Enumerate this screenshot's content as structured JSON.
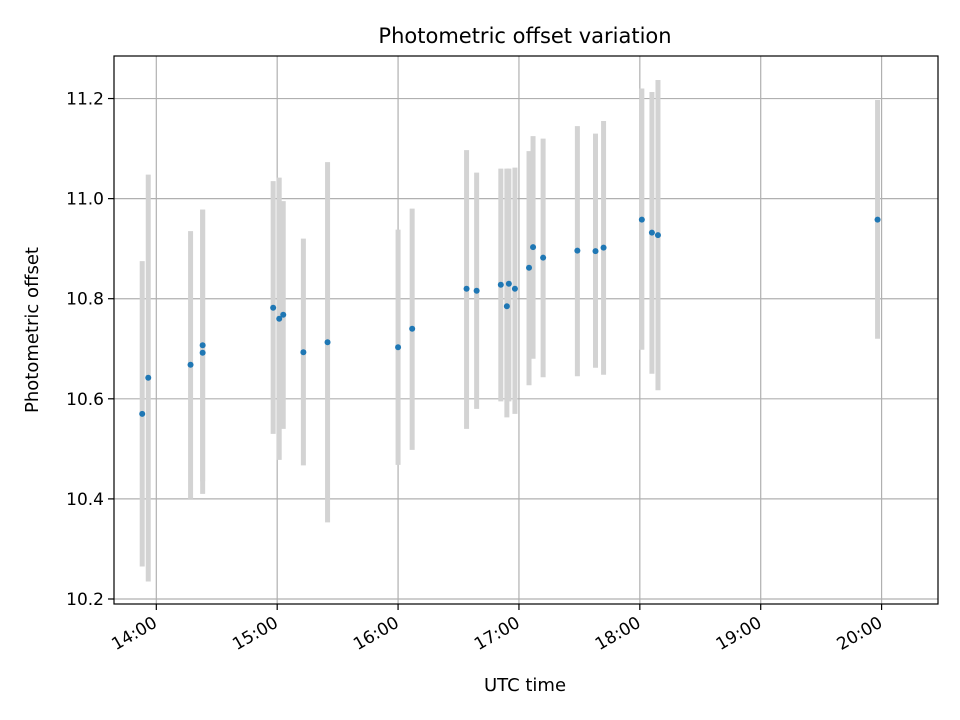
{
  "chart_data": {
    "type": "scatter",
    "title": "Photometric offset variation",
    "xlabel": "UTC time",
    "ylabel": "Photometric offset",
    "x_ticks": [
      "14:00",
      "15:00",
      "16:00",
      "17:00",
      "18:00",
      "19:00",
      "20:00"
    ],
    "xlim": [
      "13:39",
      "20:28"
    ],
    "ylim": [
      10.19,
      11.285
    ],
    "y_ticks": [
      10.2,
      10.4,
      10.6,
      10.8,
      11.0,
      11.2
    ],
    "grid": true,
    "colors": {
      "point": "#1f77b4",
      "errorbar": "#d3d3d3",
      "grid": "#b0b0b0"
    },
    "points": [
      {
        "x": "13:53",
        "y": 10.57,
        "lo": 10.265,
        "hi": 10.875
      },
      {
        "x": "13:56",
        "y": 10.642,
        "lo": 10.235,
        "hi": 11.048
      },
      {
        "x": "14:17",
        "y": 10.668,
        "lo": 10.4,
        "hi": 10.935
      },
      {
        "x": "14:23",
        "y": 10.692,
        "lo": 10.41,
        "hi": 10.978
      },
      {
        "x": "14:23",
        "y": 10.707,
        "lo": 10.435,
        "hi": 10.978
      },
      {
        "x": "14:58",
        "y": 10.782,
        "lo": 10.53,
        "hi": 11.035
      },
      {
        "x": "15:01",
        "y": 10.76,
        "lo": 10.478,
        "hi": 11.042
      },
      {
        "x": "15:03",
        "y": 10.768,
        "lo": 10.54,
        "hi": 10.995
      },
      {
        "x": "15:13",
        "y": 10.693,
        "lo": 10.467,
        "hi": 10.92
      },
      {
        "x": "15:25",
        "y": 10.713,
        "lo": 10.353,
        "hi": 11.073
      },
      {
        "x": "16:00",
        "y": 10.703,
        "lo": 10.468,
        "hi": 10.938
      },
      {
        "x": "16:07",
        "y": 10.74,
        "lo": 10.498,
        "hi": 10.98
      },
      {
        "x": "16:34",
        "y": 10.82,
        "lo": 10.54,
        "hi": 11.097
      },
      {
        "x": "16:39",
        "y": 10.816,
        "lo": 10.58,
        "hi": 11.052
      },
      {
        "x": "16:51",
        "y": 10.828,
        "lo": 10.595,
        "hi": 11.06
      },
      {
        "x": "16:54",
        "y": 10.785,
        "lo": 10.563,
        "hi": 11.06
      },
      {
        "x": "16:55",
        "y": 10.83,
        "lo": 10.595,
        "hi": 11.06
      },
      {
        "x": "16:58",
        "y": 10.82,
        "lo": 10.57,
        "hi": 11.062
      },
      {
        "x": "17:05",
        "y": 10.862,
        "lo": 10.627,
        "hi": 11.095
      },
      {
        "x": "17:07",
        "y": 10.903,
        "lo": 10.68,
        "hi": 11.125
      },
      {
        "x": "17:12",
        "y": 10.882,
        "lo": 10.643,
        "hi": 11.12
      },
      {
        "x": "17:29",
        "y": 10.896,
        "lo": 10.645,
        "hi": 11.145
      },
      {
        "x": "17:38",
        "y": 10.895,
        "lo": 10.662,
        "hi": 11.13
      },
      {
        "x": "17:42",
        "y": 10.902,
        "lo": 10.648,
        "hi": 11.155
      },
      {
        "x": "18:01",
        "y": 10.958,
        "lo": 10.698,
        "hi": 11.22
      },
      {
        "x": "18:06",
        "y": 10.932,
        "lo": 10.65,
        "hi": 11.213
      },
      {
        "x": "18:09",
        "y": 10.927,
        "lo": 10.617,
        "hi": 11.237
      },
      {
        "x": "19:58",
        "y": 10.958,
        "lo": 10.72,
        "hi": 11.197
      }
    ]
  }
}
